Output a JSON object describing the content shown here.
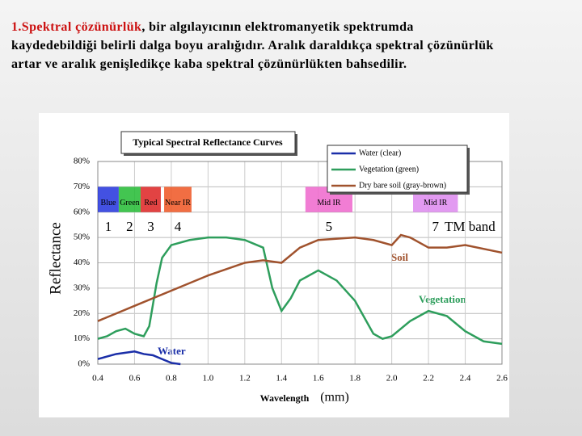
{
  "text": {
    "term": "1.Spektral çözünürlük",
    "body": ", bir algılayıcının elektromanyetik spektrumda kaydedebildiği belirli dalga boyu aralığıdır. Aralık daraldıkça spektral çözünürlük artar ve aralık genişledikçe kaba spektral çözünürlükten bahsedilir."
  },
  "chart_data": {
    "type": "line",
    "title": "Typical Spectral Reflectance Curves",
    "y_label": "Reflectance",
    "x_label": "Wavelength",
    "x_unit": "(mm)",
    "xlim": [
      0.4,
      2.6
    ],
    "xticks": [
      0.4,
      0.6,
      0.8,
      {
        "value": 1,
        "label": "1.0"
      },
      1.2,
      1.4,
      1.6,
      1.8,
      {
        "value": 2,
        "label": "2.0"
      },
      2.2,
      2.4,
      2.6
    ],
    "ylim": [
      0,
      80
    ],
    "yticks": [
      {
        "value": 0,
        "label": "0%"
      },
      {
        "value": 10,
        "label": "10%"
      },
      {
        "value": 20,
        "label": "20%"
      },
      {
        "value": 30,
        "label": "30%"
      },
      {
        "value": 40,
        "label": "40%"
      },
      {
        "value": 50,
        "label": "50%"
      },
      {
        "value": 60,
        "label": "60%"
      },
      {
        "value": 70,
        "label": "70%"
      },
      {
        "value": 80,
        "label": "80%"
      }
    ],
    "grid": true,
    "series": [
      {
        "name": "Water (clear)",
        "color": "#1a2ea8",
        "x": [
          0.4,
          0.45,
          0.5,
          0.55,
          0.6,
          0.65,
          0.7,
          0.75,
          0.8,
          0.85
        ],
        "values": [
          2,
          3,
          4,
          4.5,
          5,
          4,
          3.5,
          2,
          0.5,
          0
        ]
      },
      {
        "name": "Vegetation (green)",
        "color": "#2e9e5c",
        "x": [
          0.4,
          0.45,
          0.5,
          0.55,
          0.6,
          0.65,
          0.68,
          0.72,
          0.75,
          0.8,
          0.9,
          1.0,
          1.1,
          1.2,
          1.3,
          1.35,
          1.4,
          1.45,
          1.5,
          1.6,
          1.7,
          1.8,
          1.9,
          1.95,
          2.0,
          2.1,
          2.2,
          2.3,
          2.4,
          2.5,
          2.6
        ],
        "values": [
          10,
          11,
          13,
          14,
          12,
          11,
          15,
          32,
          42,
          47,
          49,
          50,
          50,
          49,
          46,
          30,
          21,
          26,
          33,
          37,
          33,
          25,
          12,
          10,
          11,
          17,
          21,
          19,
          13,
          9,
          8
        ]
      },
      {
        "name": "Dry bare soil (gray-brown)",
        "color": "#a0522d",
        "x": [
          0.4,
          0.6,
          0.8,
          1.0,
          1.2,
          1.3,
          1.4,
          1.5,
          1.6,
          1.8,
          1.9,
          2.0,
          2.05,
          2.1,
          2.2,
          2.3,
          2.4,
          2.6
        ],
        "values": [
          17,
          23,
          29,
          35,
          40,
          41,
          40,
          46,
          49,
          50,
          49,
          47,
          51,
          50,
          46,
          46,
          47,
          44
        ]
      }
    ],
    "annotations": [
      "Soil",
      "Vegetation",
      "Water"
    ],
    "band_title": "TM band",
    "bands": [
      {
        "label": "Blue",
        "number": 1,
        "range": [
          0.4,
          0.514
        ],
        "color": "#2233dd"
      },
      {
        "label": "Green",
        "number": 2,
        "range": [
          0.514,
          0.633
        ],
        "color": "#22bb33"
      },
      {
        "label": "Red",
        "number": 3,
        "range": [
          0.633,
          0.743
        ],
        "color": "#dd2222"
      },
      {
        "label": "Near IR",
        "number": 4,
        "range": [
          0.761,
          0.91
        ],
        "color": "#ee5522"
      },
      {
        "label": "Mid IR",
        "number": 5,
        "range": [
          1.53,
          1.786
        ],
        "color": "#ee66cc"
      },
      {
        "label": "Mid IR",
        "number": 7,
        "range": [
          2.116,
          2.36
        ],
        "color": "#dd88ee"
      }
    ]
  }
}
